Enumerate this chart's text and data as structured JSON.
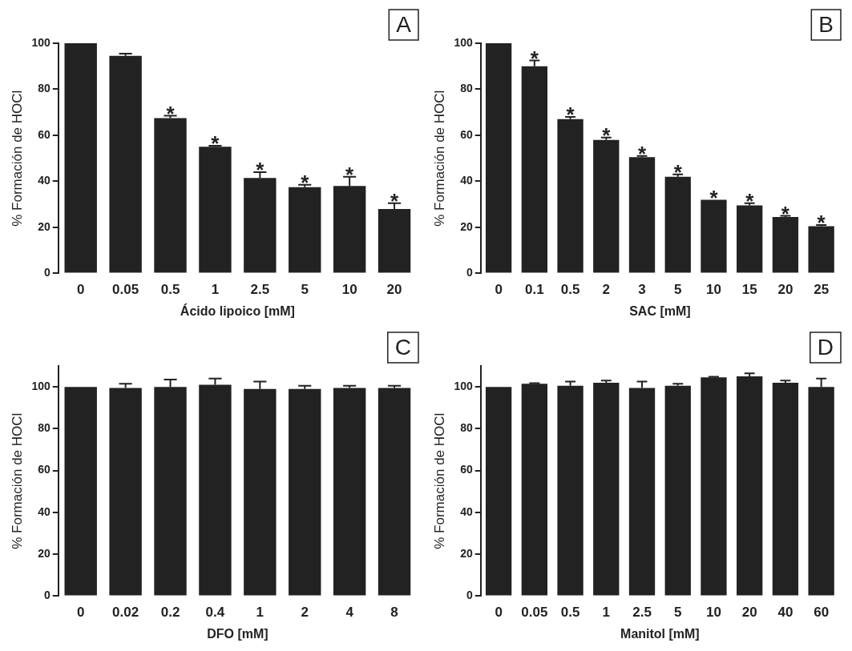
{
  "chart_data": [
    {
      "type": "bar",
      "categories": [
        "0",
        "0.05",
        "0.5",
        "1",
        "2.5",
        "5",
        "10",
        "20"
      ],
      "xlabel": "Ácido lipoico [mM]",
      "ylabel": "% Formación de HOCl",
      "color": "#222222",
      "values": [
        100,
        94.5,
        67.5,
        55,
        41.5,
        37.5,
        38,
        28
      ],
      "errors": [
        null,
        [
          94.5,
          95.5
        ],
        [
          67.5,
          68.5
        ],
        [
          55,
          55.5
        ],
        [
          41.5,
          44
        ],
        [
          37.5,
          38.5
        ],
        [
          38,
          42
        ],
        [
          28,
          30.5
        ]
      ],
      "ylim": [
        0,
        100
      ],
      "yticks": [
        0,
        20,
        40,
        60,
        80,
        100
      ],
      "grid": false,
      "legend": false,
      "annotations": [
        "A",
        {
          "text": "*",
          "x": "0.5",
          "y": 68.5
        },
        {
          "text": "*",
          "x": "1",
          "y": 55.5
        },
        {
          "text": "*",
          "x": "2.5",
          "y": 44
        },
        {
          "text": "*",
          "x": "5",
          "y": 38.5
        },
        {
          "text": "*",
          "x": "10",
          "y": 42
        },
        {
          "text": "*",
          "x": "20",
          "y": 30.5
        }
      ]
    },
    {
      "type": "bar",
      "categories": [
        "0",
        "0.1",
        "0.5",
        "2",
        "3",
        "5",
        "10",
        "15",
        "20",
        "25"
      ],
      "xlabel": "SAC [mM]",
      "ylabel": "% Formación de HOCl",
      "color": "#222222",
      "values": [
        100,
        90,
        67,
        58,
        50.5,
        42,
        32,
        29.5,
        24.5,
        20.5
      ],
      "errors": [
        null,
        [
          90,
          92.5
        ],
        [
          67,
          68
        ],
        [
          58,
          59
        ],
        [
          50.5,
          51
        ],
        [
          42,
          43
        ],
        null,
        [
          29.5,
          30.5
        ],
        [
          24.5,
          25
        ],
        [
          20.5,
          21
        ]
      ],
      "ylim": [
        0,
        100
      ],
      "yticks": [
        0,
        20,
        40,
        60,
        80,
        100
      ],
      "grid": false,
      "legend": false,
      "annotations": [
        "B",
        {
          "text": "*",
          "x": "0.1",
          "y": 92.5
        },
        {
          "text": "*",
          "x": "0.5",
          "y": 68
        },
        {
          "text": "*",
          "x": "2",
          "y": 59
        },
        {
          "text": "*",
          "x": "3",
          "y": 51
        },
        {
          "text": "*",
          "x": "5",
          "y": 43
        },
        {
          "text": "*",
          "x": "10",
          "y": 32
        },
        {
          "text": "*",
          "x": "15",
          "y": 30.5
        },
        {
          "text": "*",
          "x": "20",
          "y": 25
        },
        {
          "text": "*",
          "x": "25",
          "y": 21
        }
      ]
    },
    {
      "type": "bar",
      "categories": [
        "0",
        "0.02",
        "0.2",
        "0.4",
        "1",
        "2",
        "4",
        "8"
      ],
      "xlabel": "DFO [mM]",
      "ylabel": "% Formación de HOCl",
      "color": "#222222",
      "values": [
        100,
        99.5,
        100,
        101,
        99,
        99,
        99.5,
        99.5
      ],
      "errors": [
        null,
        [
          99.5,
          101.5
        ],
        [
          100,
          103.5
        ],
        [
          101,
          104
        ],
        [
          99,
          102.5
        ],
        [
          99,
          100.5
        ],
        [
          99.5,
          100.5
        ],
        [
          99.5,
          100.5
        ]
      ],
      "ylim": [
        0,
        110
      ],
      "yticks": [
        0,
        20,
        40,
        60,
        80,
        100
      ],
      "grid": false,
      "legend": false,
      "annotations": [
        "C"
      ]
    },
    {
      "type": "bar",
      "categories": [
        "0",
        "0.05",
        "0.5",
        "1",
        "2.5",
        "5",
        "10",
        "20",
        "40",
        "60"
      ],
      "xlabel": "Manitol [mM]",
      "ylabel": "% Formación de HOCl",
      "color": "#222222",
      "values": [
        100,
        101.5,
        100.5,
        102,
        99.5,
        100.5,
        104.5,
        105,
        102,
        100
      ],
      "errors": [
        null,
        [
          101.5,
          101.8
        ],
        [
          100.5,
          102.5
        ],
        [
          102,
          103
        ],
        [
          99.5,
          102.5
        ],
        [
          100.5,
          101.5
        ],
        [
          104.5,
          104.8
        ],
        [
          105,
          106.5
        ],
        [
          102,
          103
        ],
        [
          100,
          104
        ]
      ],
      "ylim": [
        0,
        110
      ],
      "yticks": [
        0,
        20,
        40,
        60,
        80,
        100
      ],
      "grid": false,
      "legend": false,
      "annotations": [
        "D"
      ]
    }
  ]
}
